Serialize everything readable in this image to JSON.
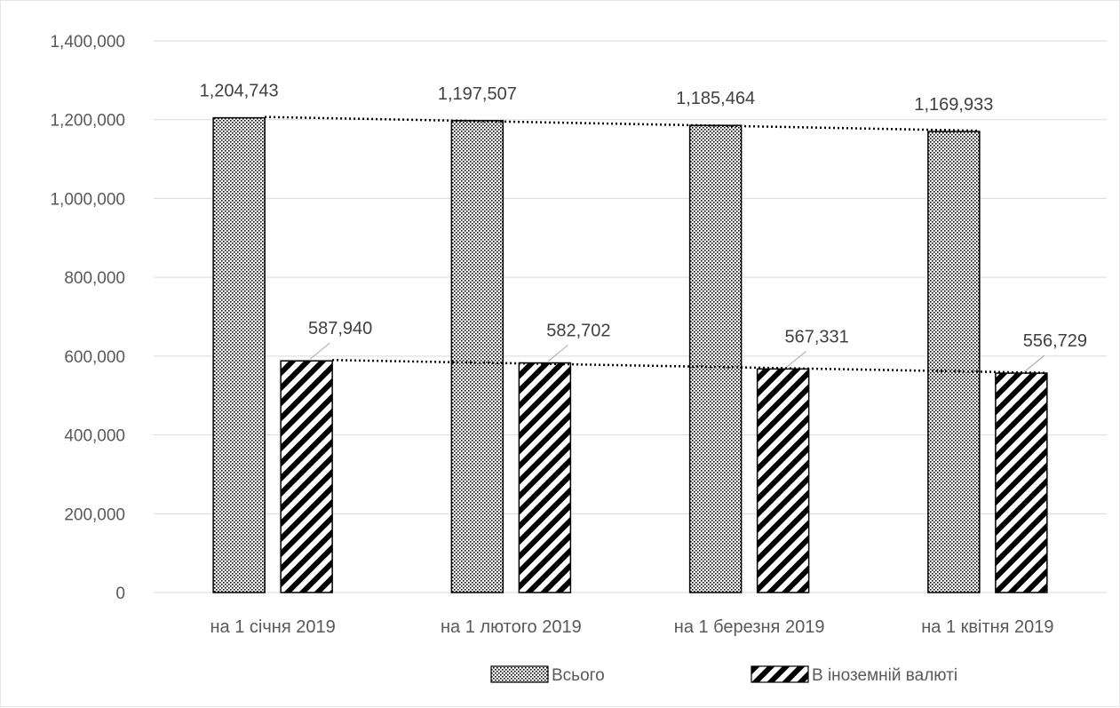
{
  "chart_data": {
    "type": "bar",
    "categories": [
      "на 1 січня 2019",
      "на 1 лютого 2019",
      "на 1 березня 2019",
      "на 1 квітня 2019"
    ],
    "series": [
      {
        "name": "Всього",
        "values": [
          1204743,
          1197507,
          1185464,
          1169933
        ],
        "labels": [
          "1,204,743",
          "1,197,507",
          "1,185,464",
          "1,169,933"
        ],
        "pattern": "dotted",
        "trendline": "linear"
      },
      {
        "name": "В іноземній валюті",
        "values": [
          587940,
          582702,
          567331,
          556729
        ],
        "labels": [
          "587,940",
          "582,702",
          "567,331",
          "556,729"
        ],
        "pattern": "diagonal-hatch",
        "trendline": "linear"
      }
    ],
    "y_ticks": [
      "0",
      "200,000",
      "400,000",
      "600,000",
      "800,000",
      "1,000,000",
      "1,200,000",
      "1,400,000"
    ],
    "ylim": [
      0,
      1400000
    ],
    "grid": true,
    "legend": "bottom",
    "title": "",
    "xlabel": "",
    "ylabel": ""
  },
  "colors": {
    "grid": "#d9d9d9",
    "bar_edge": "#000000",
    "text": "#595959",
    "trend": "#000000"
  }
}
